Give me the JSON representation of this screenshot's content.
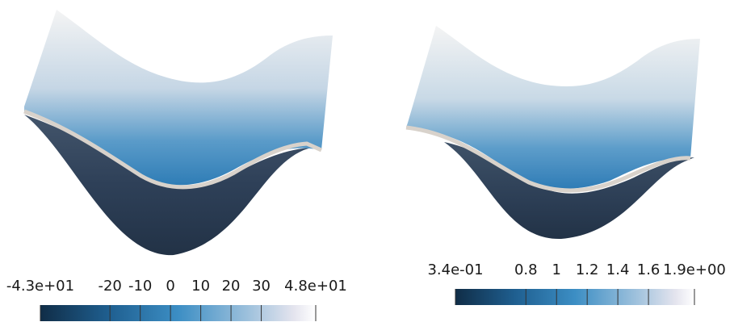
{
  "colors": {
    "colormap": [
      "#102d47",
      "#1d5f8f",
      "#3b8cc2",
      "#8ab6d6",
      "#dcdfe6",
      "#ffffff"
    ],
    "surface_top": "#f3f3f3",
    "surface_mid": "#3b84b9",
    "surface_bottom": "#2b3a4d"
  },
  "left_plot": {
    "colorbar": {
      "ticks": [
        "-4.3e+01",
        "-20",
        "-10",
        "0",
        "10",
        "20",
        "30",
        "4.8e+01"
      ],
      "tick_values": [
        -43,
        -20,
        -10,
        0,
        10,
        20,
        30,
        48
      ],
      "range": [
        -43,
        48
      ]
    }
  },
  "right_plot": {
    "colorbar": {
      "ticks": [
        "3.4e-01",
        "0.8",
        "1",
        "1.2",
        "1.4",
        "1.6",
        "1.9e+00"
      ],
      "tick_values": [
        0.34,
        0.8,
        1.0,
        1.2,
        1.4,
        1.6,
        1.9
      ],
      "range": [
        0.34,
        1.9
      ]
    }
  }
}
